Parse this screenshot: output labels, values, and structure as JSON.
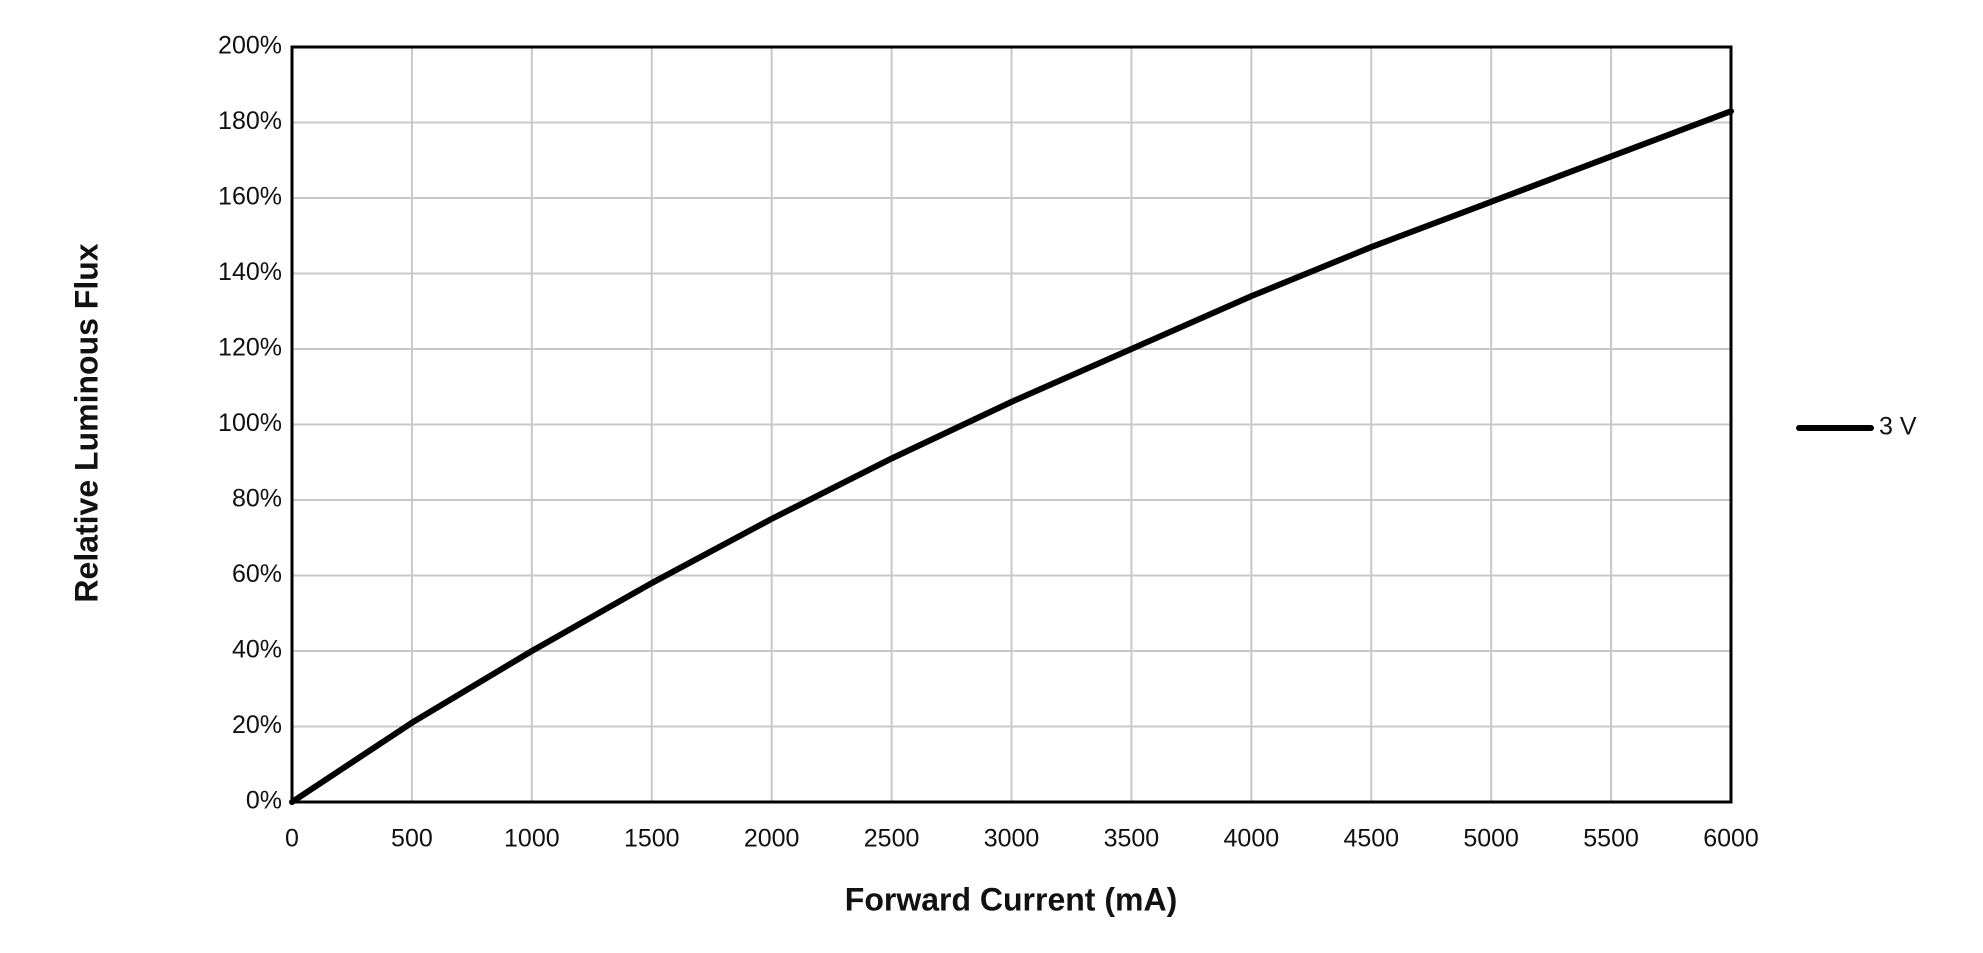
{
  "chart_data": {
    "type": "line",
    "x_label": "Forward Current (mA)",
    "y_label": "Relative Luminous Flux",
    "x": [
      0,
      500,
      1000,
      1500,
      2000,
      2500,
      3000,
      3500,
      4000,
      4500,
      5000,
      5500,
      6000
    ],
    "series": [
      {
        "name": "3 V",
        "color": "#000000",
        "values": [
          0,
          21,
          40,
          58,
          75,
          91,
          106,
          120,
          134,
          147,
          159,
          171,
          183
        ]
      }
    ],
    "xlim": [
      0,
      6000
    ],
    "xticks": [
      0,
      500,
      1000,
      1500,
      2000,
      2500,
      3000,
      3500,
      4000,
      4500,
      5000,
      5500,
      6000
    ],
    "ylim": [
      0,
      200
    ],
    "yticks": [
      {
        "value": 0,
        "label": "0%"
      },
      {
        "value": 20,
        "label": "20%"
      },
      {
        "value": 40,
        "label": "40%"
      },
      {
        "value": 60,
        "label": "60%"
      },
      {
        "value": 80,
        "label": "80%"
      },
      {
        "value": 100,
        "label": "100%"
      },
      {
        "value": 120,
        "label": "120%"
      },
      {
        "value": 140,
        "label": "140%"
      },
      {
        "value": 160,
        "label": "160%"
      },
      {
        "value": 180,
        "label": "180%"
      },
      {
        "value": 200,
        "label": "200%"
      }
    ],
    "grid": true,
    "legend": "right"
  }
}
